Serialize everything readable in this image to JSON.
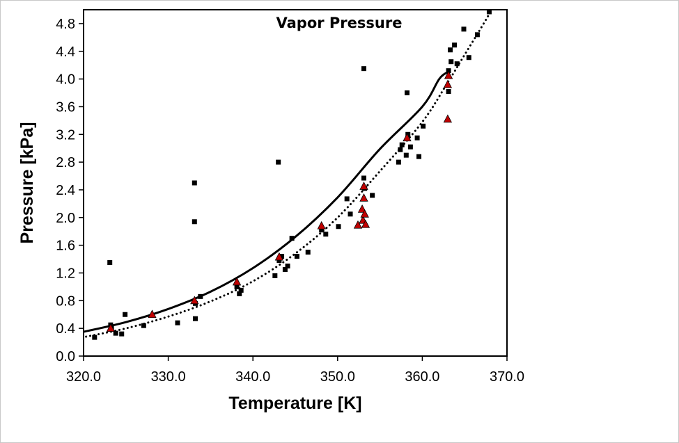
{
  "chart_data": {
    "type": "scatter",
    "title": "Vapor Pressure",
    "xlabel": "Temperature [K]",
    "ylabel": "Pressure [kPa]",
    "xlim": [
      320,
      370
    ],
    "ylim": [
      0,
      5
    ],
    "xticks": [
      "320.0",
      "330.0",
      "340.0",
      "350.0",
      "360.0",
      "370.0"
    ],
    "yticks": [
      "0.0",
      "0.4",
      "0.8",
      "1.2",
      "1.6",
      "2.0",
      "2.4",
      "2.8",
      "3.2",
      "3.6",
      "4.0",
      "4.4",
      "4.8"
    ],
    "grid": false,
    "legend": "none",
    "series": [
      {
        "marker": "square",
        "color": "#000000",
        "points": [
          [
            321.3,
            0.27
          ],
          [
            323.1,
            1.35
          ],
          [
            323.2,
            0.45
          ],
          [
            323.3,
            0.4
          ],
          [
            323.8,
            0.33
          ],
          [
            324.5,
            0.32
          ],
          [
            324.9,
            0.6
          ],
          [
            327.1,
            0.44
          ],
          [
            331.1,
            0.48
          ],
          [
            333.1,
            2.5
          ],
          [
            333.1,
            1.94
          ],
          [
            333.2,
            0.54
          ],
          [
            333.2,
            0.76
          ],
          [
            333.8,
            0.86
          ],
          [
            338.1,
            1.0
          ],
          [
            338.4,
            0.9
          ],
          [
            338.6,
            0.95
          ],
          [
            342.6,
            1.16
          ],
          [
            343.0,
            2.8
          ],
          [
            343.1,
            1.38
          ],
          [
            343.4,
            1.44
          ],
          [
            343.8,
            1.25
          ],
          [
            344.1,
            1.3
          ],
          [
            344.6,
            1.7
          ],
          [
            345.2,
            1.44
          ],
          [
            346.5,
            1.5
          ],
          [
            348.1,
            1.82
          ],
          [
            348.6,
            1.76
          ],
          [
            350.1,
            1.87
          ],
          [
            351.1,
            2.27
          ],
          [
            351.5,
            2.05
          ],
          [
            353.1,
            4.15
          ],
          [
            353.1,
            2.57
          ],
          [
            353.2,
            2.42
          ],
          [
            354.1,
            2.32
          ],
          [
            357.2,
            2.8
          ],
          [
            357.4,
            2.98
          ],
          [
            357.6,
            3.05
          ],
          [
            358.1,
            2.9
          ],
          [
            358.2,
            3.8
          ],
          [
            358.3,
            3.2
          ],
          [
            358.6,
            3.02
          ],
          [
            359.4,
            3.15
          ],
          [
            359.6,
            2.88
          ],
          [
            360.1,
            3.32
          ],
          [
            363.1,
            4.12
          ],
          [
            363.1,
            3.82
          ],
          [
            363.3,
            4.42
          ],
          [
            363.4,
            4.25
          ],
          [
            363.8,
            4.49
          ],
          [
            364.1,
            4.22
          ],
          [
            364.9,
            4.72
          ],
          [
            365.5,
            4.31
          ],
          [
            366.5,
            4.64
          ],
          [
            367.9,
            4.97
          ]
        ]
      },
      {
        "marker": "triangle",
        "color": "#c00000",
        "points": [
          [
            323.2,
            0.4
          ],
          [
            328.1,
            0.6
          ],
          [
            333.1,
            0.8
          ],
          [
            338.1,
            1.07
          ],
          [
            343.1,
            1.43
          ],
          [
            348.1,
            1.88
          ],
          [
            352.4,
            1.89
          ],
          [
            352.9,
            2.12
          ],
          [
            353.0,
            1.96
          ],
          [
            353.1,
            2.28
          ],
          [
            353.1,
            2.45
          ],
          [
            353.2,
            2.05
          ],
          [
            353.3,
            1.9
          ],
          [
            358.2,
            3.15
          ],
          [
            363.0,
            3.42
          ],
          [
            363.0,
            3.92
          ],
          [
            363.1,
            4.05
          ]
        ]
      }
    ],
    "fits": [
      {
        "style": "solid",
        "points": [
          [
            320.0,
            0.35
          ],
          [
            325.0,
            0.49
          ],
          [
            330.0,
            0.68
          ],
          [
            335.0,
            0.93
          ],
          [
            340.0,
            1.27
          ],
          [
            345.0,
            1.72
          ],
          [
            350.0,
            2.29
          ],
          [
            355.0,
            2.99
          ],
          [
            360.0,
            3.6
          ],
          [
            362.0,
            4.0
          ],
          [
            363.0,
            4.1
          ]
        ]
      },
      {
        "style": "dotted",
        "points": [
          [
            320.3,
            0.28
          ],
          [
            325.0,
            0.4
          ],
          [
            330.0,
            0.57
          ],
          [
            335.0,
            0.79
          ],
          [
            340.0,
            1.08
          ],
          [
            345.0,
            1.48
          ],
          [
            350.0,
            2.0
          ],
          [
            355.0,
            2.67
          ],
          [
            360.0,
            3.38
          ],
          [
            363.0,
            3.95
          ],
          [
            365.0,
            4.35
          ],
          [
            367.0,
            4.75
          ],
          [
            368.2,
            5.0
          ]
        ]
      }
    ]
  }
}
